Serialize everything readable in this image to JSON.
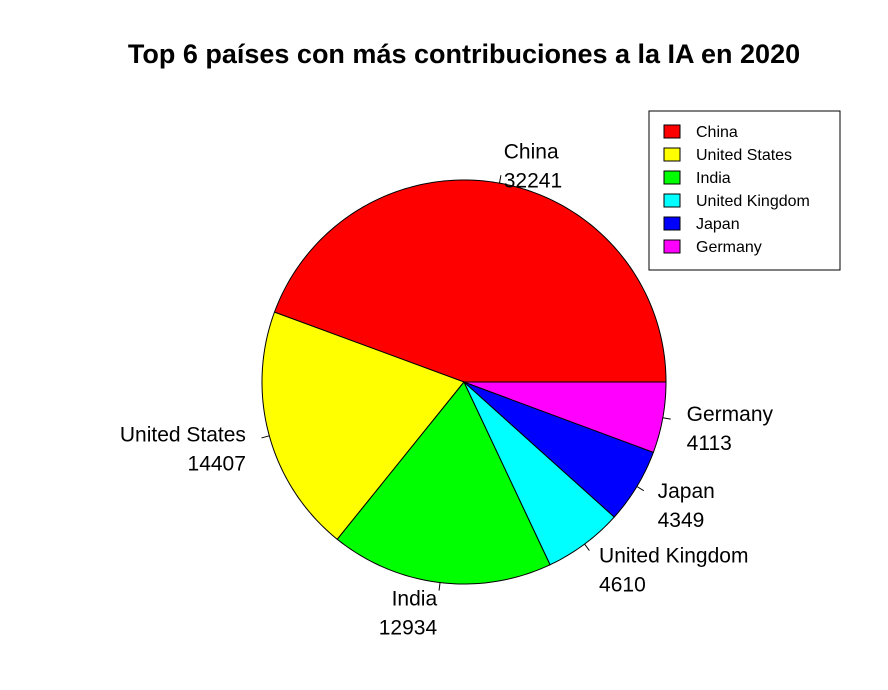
{
  "chart_data": {
    "type": "pie",
    "title": "Top 6 países con más contribuciones a la IA en 2020",
    "slices": [
      {
        "label": "China",
        "value": 32241,
        "color": "#FF0000"
      },
      {
        "label": "United States",
        "value": 14407,
        "color": "#FFFF00"
      },
      {
        "label": "India",
        "value": 12934,
        "color": "#00FF00"
      },
      {
        "label": "United Kingdom",
        "value": 4610,
        "color": "#00FFFF"
      },
      {
        "label": "Japan",
        "value": 4349,
        "color": "#0000FF"
      },
      {
        "label": "Germany",
        "value": 4113,
        "color": "#FF00FF"
      }
    ],
    "start_angle_deg": 0,
    "direction": "counterclockwise",
    "legend_position": "top-right"
  }
}
